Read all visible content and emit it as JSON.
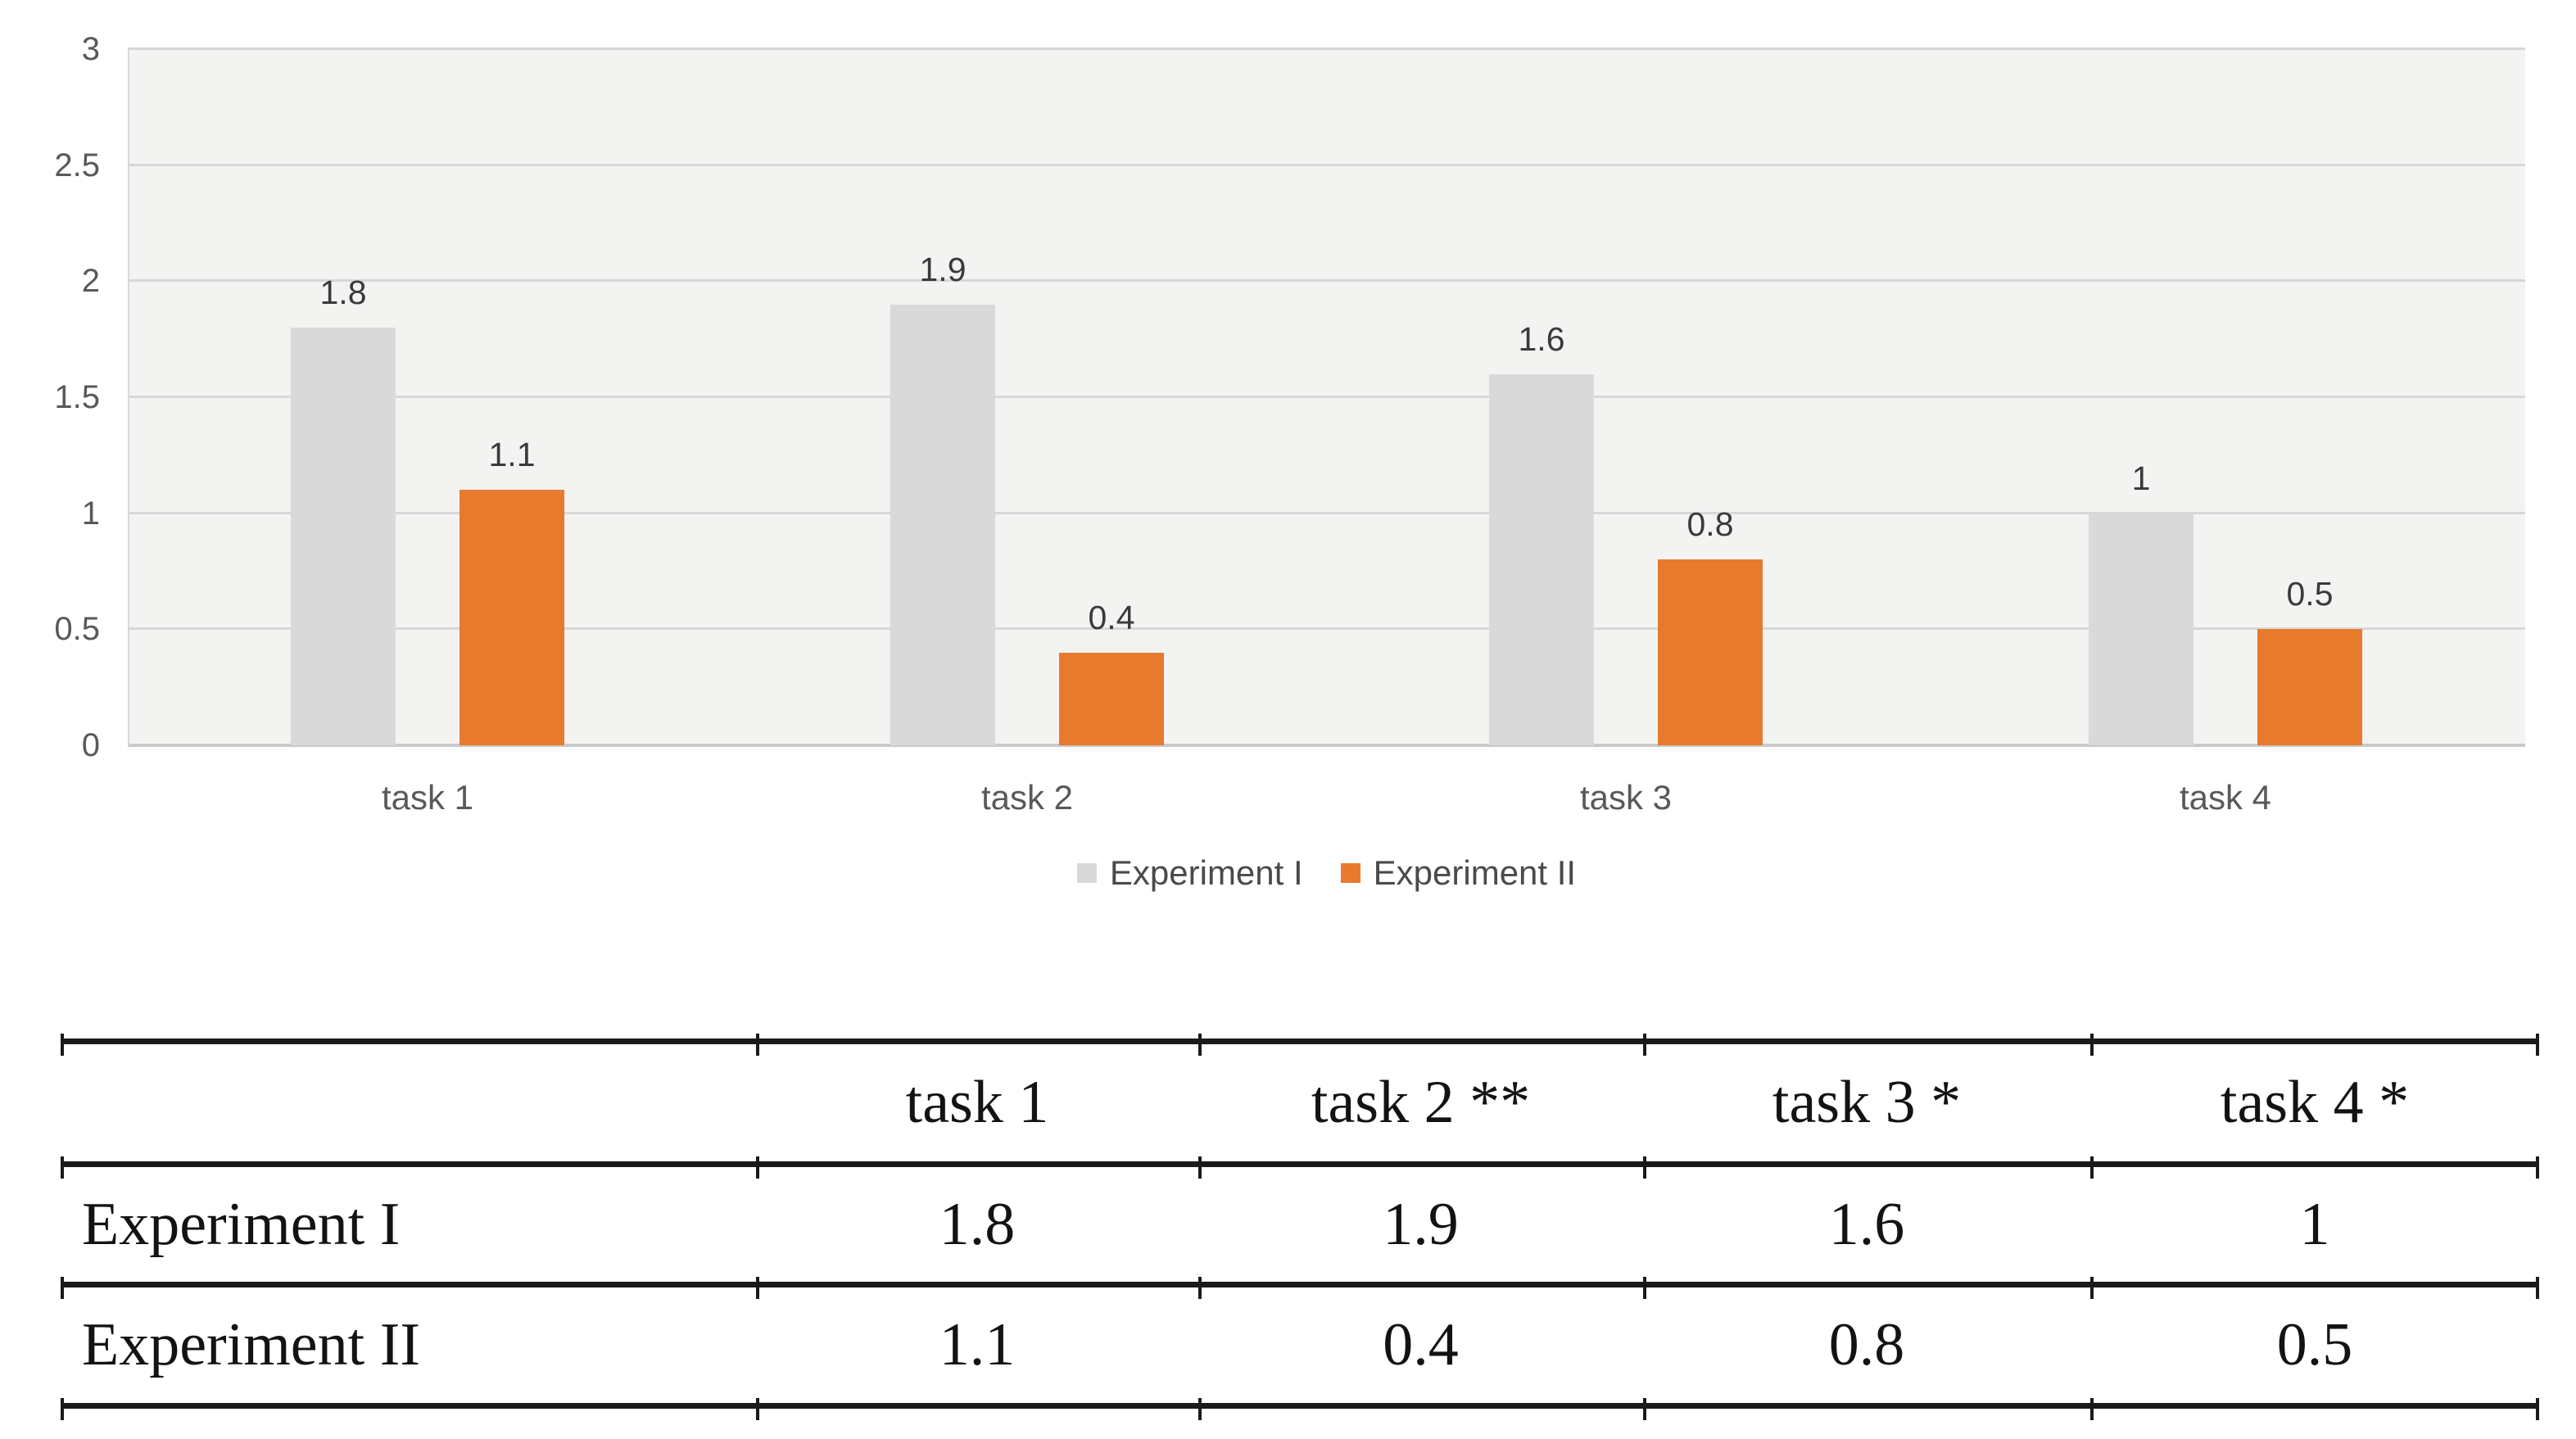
{
  "chart_data": {
    "type": "bar",
    "categories": [
      "task 1",
      "task 2",
      "task 3",
      "task 4"
    ],
    "series": [
      {
        "name": "Experiment I",
        "color": "#D9D9D9",
        "values": [
          1.8,
          1.9,
          1.6,
          1
        ]
      },
      {
        "name": "Experiment II",
        "color": "#E87A2E",
        "values": [
          1.1,
          0.4,
          0.8,
          0.5
        ]
      }
    ],
    "data_labels": {
      "Experiment I": [
        "1.8",
        "1.9",
        "1.6",
        "1"
      ],
      "Experiment II": [
        "1.1",
        "0.4",
        "0.8",
        "0.5"
      ]
    },
    "ylim": [
      0,
      3
    ],
    "ytick_step": 0.5,
    "ytick_labels": [
      "0",
      "0.5",
      "1",
      "1.5",
      "2",
      "2.5",
      "3"
    ],
    "grid": true,
    "legend_position": "bottom",
    "plot_background": "#F3F3F2",
    "gridline_color": "#D7D7D7",
    "axis_text_color": "#595959",
    "data_label_color": "#3A3A3A"
  },
  "table": {
    "headers": [
      "",
      "task 1",
      "task 2 **",
      "task 3 *",
      "task 4 *"
    ],
    "rows": [
      {
        "label": "Experiment I",
        "values": [
          "1.8",
          "1.9",
          "1.6",
          "1"
        ]
      },
      {
        "label": "Experiment II",
        "values": [
          "1.1",
          "0.4",
          "0.8",
          "0.5"
        ]
      }
    ],
    "rule_color": "#1A1A1A",
    "text_color": "#131313"
  }
}
